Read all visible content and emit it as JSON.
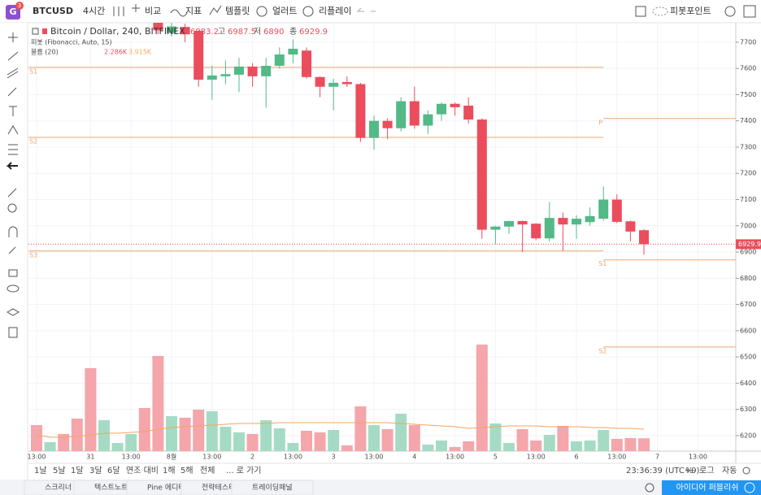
{
  "toolbar": {
    "symbol": "BTCUSD",
    "interval": "4시간",
    "compare": "비교",
    "indicators": "지표",
    "templates": "템플릿",
    "alerts": "얼러트",
    "replay": "리플레이",
    "pivot": "피봇포인트",
    "badge": "3"
  },
  "bottom_bar": {
    "ranges": [
      "1날",
      "5날",
      "1달",
      "3달",
      "6달",
      "연조 대비",
      "1해",
      "5해",
      "전체",
      "... 로 가기"
    ],
    "clock": "23:36:39 (UTC+9)",
    "percent": "%",
    "log": "로그",
    "auto": "자동"
  },
  "tabs": [
    "스크리너",
    "텍스트노트",
    "Pine 에디터",
    "전략테스터",
    "트레이딩패널"
  ],
  "publish": "아이디어 퍼블리쉬",
  "chart_data": {
    "type": "candlestick",
    "title": "Bitcoin / Dollar, 240, BITFINEX",
    "ohlc_labels": {
      "high": "고",
      "low": "저",
      "close": "종"
    },
    "pivot_title": "피봇 (Fibonacci, Auto, 15)",
    "volume_title": "볼륨 (20)",
    "volume_label": "2.286K",
    "volume_ma_label": "3.915K",
    "open": [
      null,
      null,
      null,
      null,
      null,
      null,
      null,
      null,
      null,
      7790,
      7735,
      7758,
      7743,
      7557,
      7570,
      7576,
      7607,
      7570,
      7610,
      7653,
      7668,
      7567,
      7530,
      7548,
      7540,
      7335,
      7400,
      7372,
      7475,
      7382,
      7425,
      7465,
      7458,
      7405,
      6985,
      6997,
      7018,
      7008,
      6952,
      7030,
      7005,
      7014,
      7027,
      7100,
      7017,
      6983.2
    ],
    "high": [
      null,
      null,
      null,
      null,
      null,
      null,
      null,
      null,
      null,
      7800,
      7780,
      7770,
      7745,
      7610,
      7630,
      7640,
      7620,
      7640,
      7680,
      7710,
      7680,
      7570,
      7560,
      7570,
      7545,
      7420,
      7410,
      7490,
      7530,
      7440,
      7470,
      7470,
      7490,
      7410,
      7000,
      7020,
      7020,
      7010,
      7090,
      7050,
      7040,
      7070,
      7150,
      7120,
      7020,
      6987.5
    ],
    "low": [
      null,
      null,
      null,
      null,
      null,
      null,
      null,
      null,
      null,
      7730,
      7720,
      7700,
      7530,
      7480,
      7540,
      7510,
      7530,
      7450,
      7600,
      7620,
      7560,
      7490,
      7440,
      7530,
      7320,
      7290,
      7330,
      7360,
      7370,
      7350,
      7400,
      7420,
      7390,
      6950,
      6930,
      6970,
      6900,
      6945,
      6940,
      6905,
      6950,
      7000,
      7020,
      7010,
      6940,
      6890.0
    ],
    "close": [
      null,
      null,
      null,
      null,
      null,
      null,
      null,
      null,
      null,
      7745,
      7760,
      7730,
      7557,
      7573,
      7578,
      7607,
      7570,
      7610,
      7653,
      7675,
      7567,
      7530,
      7545,
      7540,
      7335,
      7400,
      7372,
      7475,
      7382,
      7425,
      7465,
      7452,
      7405,
      6985,
      6997,
      7018,
      7005,
      6952,
      7030,
      7005,
      7027,
      7037,
      7100,
      7015,
      6978,
      6929.9
    ],
    "volume": [
      4.64,
      1.6,
      3.05,
      5.8,
      14.79,
      5.51,
      1.45,
      3.05,
      7.69,
      16.97,
      6.24,
      5.95,
      7.4,
      7.11,
      4.35,
      3.34,
      3.05,
      5.51,
      4.06,
      1.45,
      3.63,
      3.34,
      3.77,
      1.02,
      7.98,
      4.64,
      3.92,
      6.67,
      4.64,
      1.16,
      1.89,
      0.73,
      1.74,
      19.0,
      4.93,
      1.45,
      3.92,
      1.89,
      2.9,
      4.5,
      1.74,
      1.89,
      3.77,
      2.18,
      2.32,
      2.286
    ],
    "volume_ma": [
      2.9,
      2.47,
      2.47,
      2.61,
      2.9,
      3.19,
      3.19,
      3.34,
      3.48,
      3.92,
      4.21,
      4.35,
      4.5,
      4.64,
      4.79,
      4.93,
      4.93,
      4.93,
      5.08,
      5.08,
      5.08,
      5.08,
      5.08,
      5.08,
      5.08,
      5.08,
      5.08,
      4.93,
      4.79,
      4.64,
      4.5,
      4.35,
      4.06,
      4.21,
      4.35,
      4.5,
      4.5,
      4.5,
      4.35,
      4.35,
      4.35,
      4.21,
      4.21,
      4.06,
      4.06,
      3.915
    ],
    "volume_colors": [
      "#f4a6ab",
      "#a5dbc4",
      "#f4a6ab",
      "#f4a6ab",
      "#f4a6ab",
      "#a5dbc4",
      "#a5dbc4",
      "#a5dbc4",
      "#f4a6ab",
      "#f4a6ab",
      "#a5dbc4",
      "#f4a6ab",
      "#f4a6ab",
      "#a5dbc4",
      "#a5dbc4",
      "#a5dbc4",
      "#f4a6ab",
      "#a5dbc4",
      "#a5dbc4",
      "#a5dbc4",
      "#f4a6ab",
      "#f4a6ab",
      "#a5dbc4",
      "#f4a6ab",
      "#f4a6ab",
      "#a5dbc4",
      "#f4a6ab",
      "#a5dbc4",
      "#f4a6ab",
      "#a5dbc4",
      "#a5dbc4",
      "#f4a6ab",
      "#f4a6ab",
      "#f4a6ab",
      "#a5dbc4",
      "#a5dbc4",
      "#f4a6ab",
      "#f4a6ab",
      "#a5dbc4",
      "#f4a6ab",
      "#a5dbc4",
      "#a5dbc4",
      "#a5dbc4",
      "#f4a6ab",
      "#f4a6ab",
      "#f4a6ab"
    ],
    "up_color": "#53b987",
    "down_color": "#eb4d5c",
    "ma_color": "#f5a55e",
    "pivot_color": "#e8a872",
    "pivots": [
      {
        "label": "S1",
        "value": 7604,
        "from": -1,
        "to": 42
      },
      {
        "label": "S2",
        "value": 7337,
        "from": -1,
        "to": 42
      },
      {
        "label": "S3",
        "value": 6904,
        "from": -1,
        "to": 42
      },
      {
        "label": "P",
        "value": 7409,
        "from": 42,
        "to": 52
      },
      {
        "label": "S1",
        "value": 6870,
        "from": 42,
        "to": 52
      },
      {
        "label": "S2",
        "value": 6538,
        "from": 42,
        "to": 52
      }
    ],
    "ylim": [
      6141,
      7774
    ],
    "yticks": [
      6200,
      6300,
      6400,
      6500,
      6600,
      6700,
      6800,
      6900,
      7000,
      7100,
      7200,
      7300,
      7400,
      7500,
      7600,
      7700
    ],
    "xticks": [
      {
        "value": 0,
        "label": "13:00"
      },
      {
        "value": 4,
        "label": "31"
      },
      {
        "value": 7,
        "label": "13:00"
      },
      {
        "value": 10,
        "label": "8월"
      },
      {
        "value": 13,
        "label": "13:00"
      },
      {
        "value": 16,
        "label": "2"
      },
      {
        "value": 19,
        "label": "13:00"
      },
      {
        "value": 22,
        "label": "3"
      },
      {
        "value": 25,
        "label": "13:00"
      },
      {
        "value": 28,
        "label": "4"
      },
      {
        "value": 31,
        "label": "13:00"
      },
      {
        "value": 34,
        "label": "5"
      },
      {
        "value": 37,
        "label": "13:00"
      },
      {
        "value": 40,
        "label": "6"
      },
      {
        "value": 43,
        "label": "13:00"
      },
      {
        "value": 46,
        "label": "7"
      },
      {
        "value": 49,
        "label": "13:00"
      }
    ],
    "grid": true
  }
}
